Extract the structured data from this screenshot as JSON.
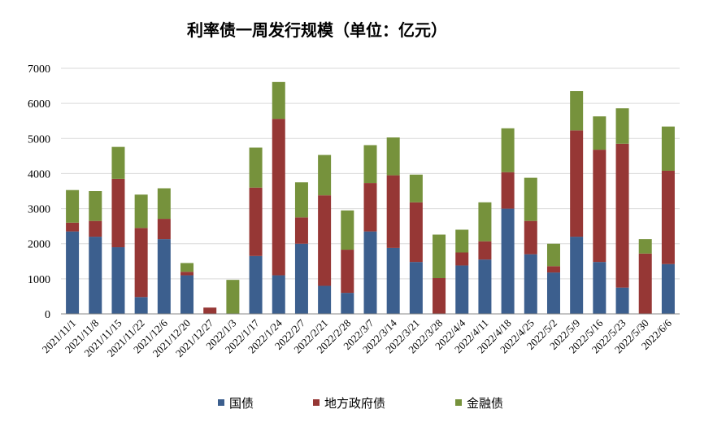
{
  "chart_data": {
    "type": "bar",
    "stacked": true,
    "title": "利率债一周发行规模（单位：亿元）",
    "xlabel": "",
    "ylabel": "",
    "ylim": [
      0,
      7000
    ],
    "yticks": [
      "0",
      "1000",
      "2000",
      "3000",
      "4000",
      "5000",
      "6000",
      "7000"
    ],
    "grid": true,
    "legend_position": "bottom",
    "categories": [
      "2021/11/1",
      "2021/11/8",
      "2021/11/15",
      "2021/11/22",
      "2021/12/6",
      "2021/12/20",
      "2021/12/27",
      "2022/1/3",
      "2022/1/17",
      "2022/1/24",
      "2022/2/7",
      "2022/2/21",
      "2022/2/28",
      "2022/3/7",
      "2022/3/14",
      "2022/3/21",
      "2022/3/28",
      "2022/4/4",
      "2022/4/11",
      "2022/4/18",
      "2022/4/25",
      "2022/5/2",
      "2022/5/9",
      "2022/5/16",
      "2022/5/23",
      "2022/5/30",
      "2022/6/6"
    ],
    "series": [
      {
        "name": "国债",
        "color": "#3c5f8e",
        "values": [
          2350,
          2200,
          1900,
          480,
          2130,
          1100,
          0,
          0,
          1650,
          1100,
          2000,
          800,
          600,
          2350,
          1880,
          1480,
          0,
          1380,
          1550,
          3000,
          1700,
          1180,
          2200,
          1480,
          750,
          0,
          1420
        ]
      },
      {
        "name": "地方政府债",
        "color": "#963735",
        "values": [
          250,
          450,
          1950,
          1970,
          580,
          100,
          180,
          0,
          1950,
          4460,
          750,
          2580,
          1230,
          1380,
          2070,
          1700,
          1020,
          370,
          520,
          1040,
          950,
          180,
          3030,
          3200,
          4100,
          1720,
          2660
        ]
      },
      {
        "name": "金融债",
        "color": "#76923c",
        "values": [
          930,
          850,
          910,
          950,
          870,
          250,
          0,
          970,
          1140,
          1050,
          1000,
          1150,
          1120,
          1080,
          1080,
          790,
          1240,
          650,
          1110,
          1250,
          1230,
          640,
          1120,
          950,
          1010,
          410,
          1260
        ]
      }
    ]
  }
}
